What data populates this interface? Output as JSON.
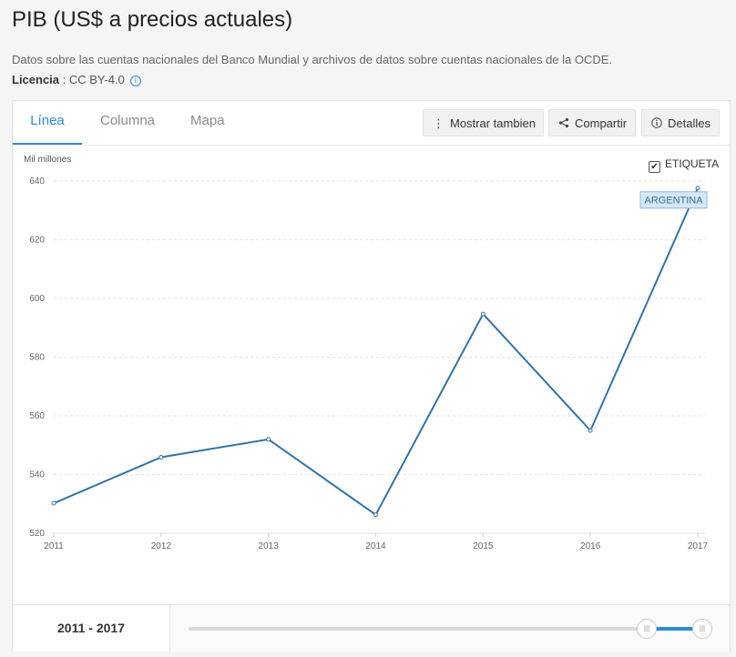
{
  "page": {
    "title": "PIB (US$ a precios actuales)",
    "subtitle": "Datos sobre las cuentas nacionales del Banco Mundial y archivos de datos sobre cuentas nacionales de la OCDE.",
    "license_label": "Licencia",
    "license_value": " : CC BY-4.0",
    "info_icon": "info-icon"
  },
  "tabs": [
    {
      "label": "Línea",
      "active": true
    },
    {
      "label": "Columna",
      "active": false
    },
    {
      "label": "Mapa",
      "active": false
    }
  ],
  "toolbar": {
    "show_also": {
      "label": "Mostrar tambien",
      "icon": "more-vertical-icon"
    },
    "share": {
      "label": "Compartir",
      "icon": "share-icon"
    },
    "details": {
      "label": "Detalles",
      "icon": "info-icon"
    }
  },
  "label_toggle": {
    "label": "ETIQUETA",
    "checked": true
  },
  "range": {
    "label": "2011 - 2017",
    "start": 2016,
    "end": 2017
  },
  "colors": {
    "accent": "#2a8bd8",
    "line": "#2f73a8",
    "tag_bg": "#d4e8f6"
  },
  "chart_data": {
    "type": "line",
    "ylabel": "Mil millones",
    "x": [
      "2011",
      "2012",
      "2013",
      "2014",
      "2015",
      "2016",
      "2017"
    ],
    "series": [
      {
        "name": "ARGENTINA",
        "values": [
          530.2,
          545.9,
          552.0,
          526.3,
          594.7,
          555.0,
          637.6
        ]
      }
    ],
    "ylim": [
      520,
      640
    ],
    "yticks": [
      520,
      540,
      560,
      580,
      600,
      620,
      640
    ],
    "grid": true,
    "annotation": "ARGENTINA"
  }
}
